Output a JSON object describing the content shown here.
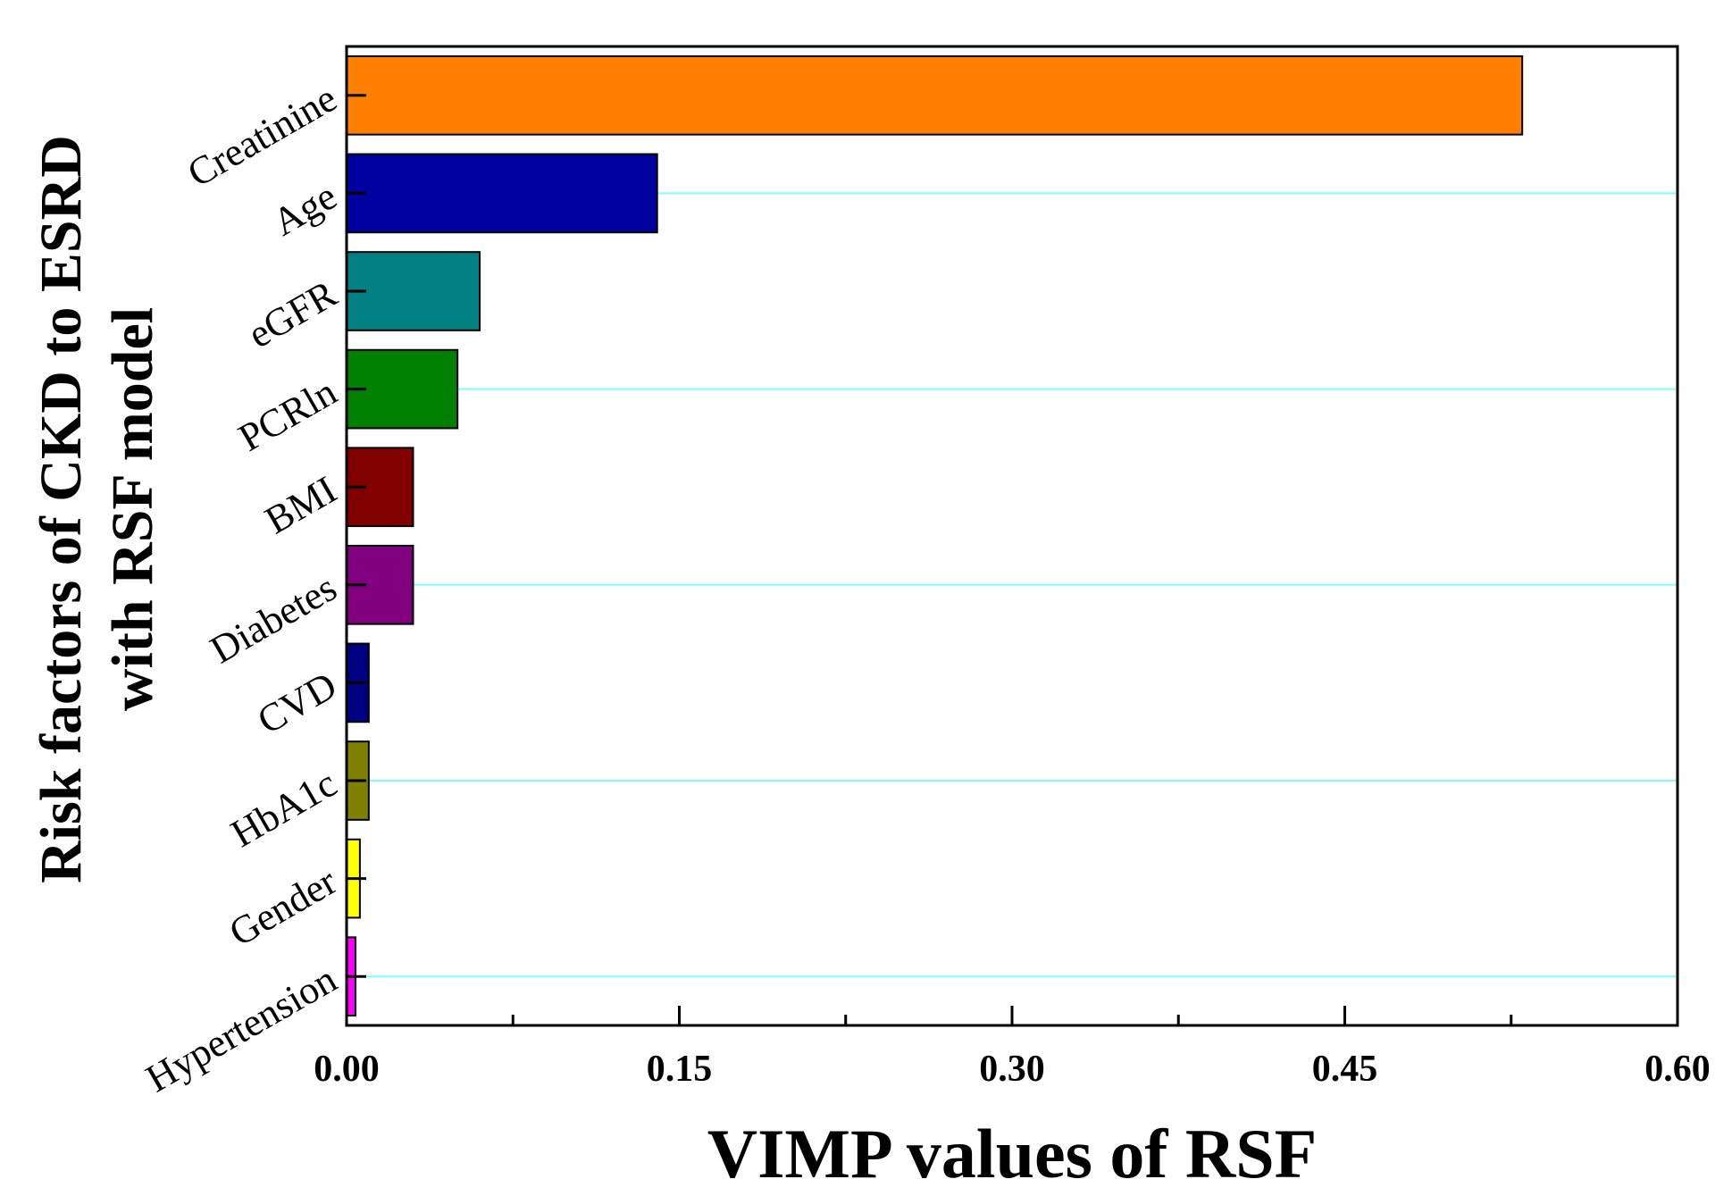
{
  "chart_data": {
    "type": "bar",
    "orientation": "horizontal",
    "categories": [
      "Creatinine",
      "Age",
      "eGFR",
      "PCRln",
      "BMI",
      "Diabetes",
      "CVD",
      "HbA1c",
      "Gender",
      "Hypertension"
    ],
    "values": [
      0.53,
      0.14,
      0.06,
      0.05,
      0.03,
      0.03,
      0.01,
      0.01,
      0.006,
      0.004
    ],
    "colors": [
      "#FF8000",
      "#0000A0",
      "#008080",
      "#008000",
      "#800000",
      "#800080",
      "#000080",
      "#808000",
      "#FFFF00",
      "#FF00FF"
    ],
    "xlabel": "VIMP values of RSF",
    "ylabel_lines": [
      "Risk factors of CKD to ESRD",
      "with RSF model"
    ],
    "xlim": [
      0,
      0.6
    ],
    "xticks": [
      0.0,
      0.15,
      0.3,
      0.45,
      0.6
    ],
    "xtick_labels": [
      "0.00",
      "0.15",
      "0.30",
      "0.45",
      "0.60"
    ],
    "gridline_color": "#80FFFF"
  }
}
